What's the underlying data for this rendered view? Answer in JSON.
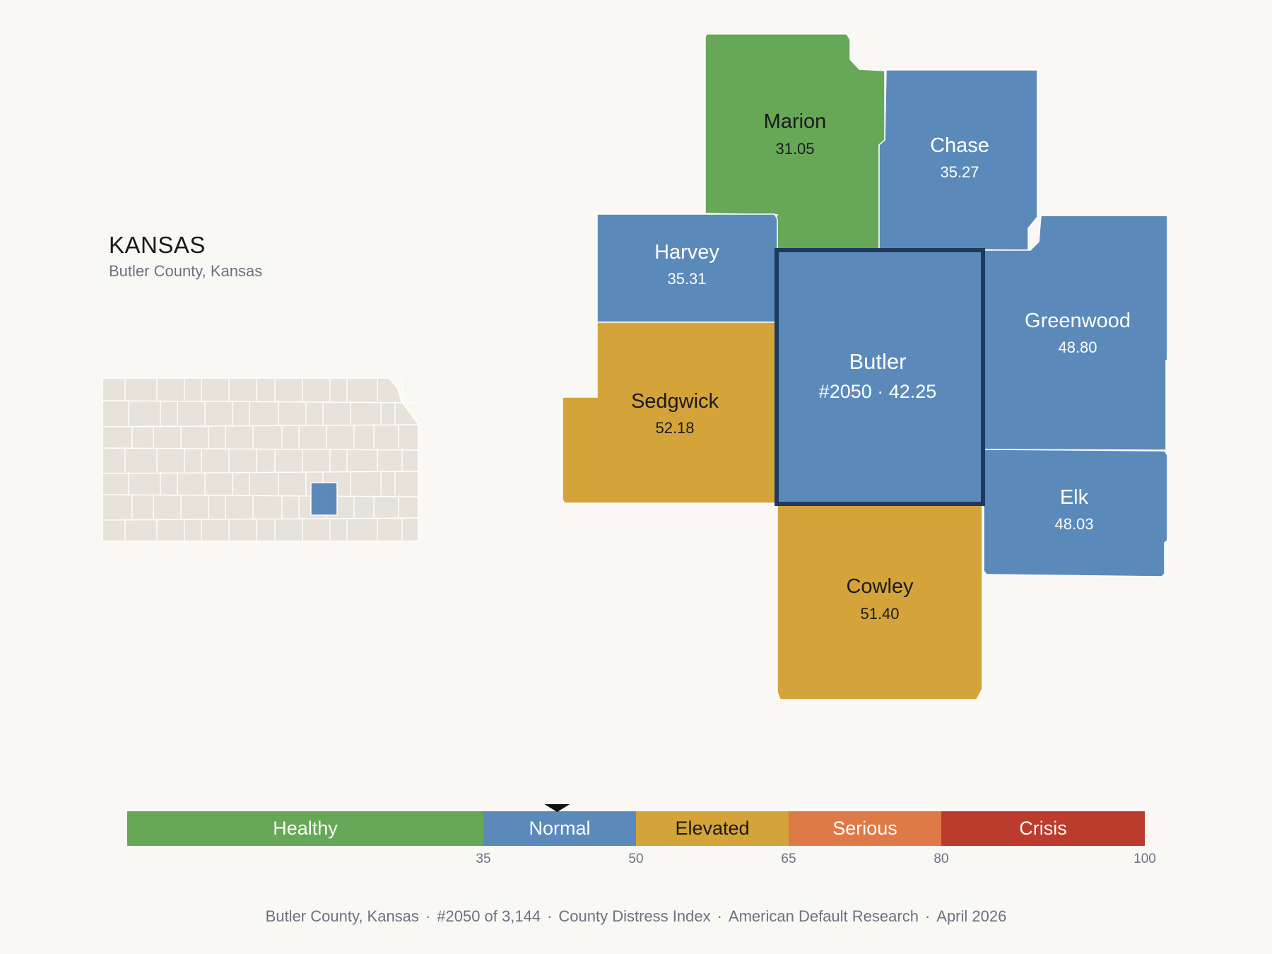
{
  "header": {
    "state": "KANSAS",
    "subtitle": "Butler County, Kansas"
  },
  "colors": {
    "background": "#f9f8f5",
    "healthy": "#67a758",
    "normal": "#5b8aba",
    "elevated": "#d4a43a",
    "serious": "#de7a48",
    "crisis": "#bb3b2c",
    "inset_fill": "#e8e3da",
    "highlight_border": "#1e3a5f"
  },
  "counties": [
    {
      "name": "Marion",
      "value": "31.05",
      "category": "healthy"
    },
    {
      "name": "Chase",
      "value": "35.27",
      "category": "normal"
    },
    {
      "name": "Harvey",
      "value": "35.31",
      "category": "normal"
    },
    {
      "name": "Butler",
      "value": "#2050 · 42.25",
      "category": "normal",
      "selected": true
    },
    {
      "name": "Greenwood",
      "value": "48.80",
      "category": "normal"
    },
    {
      "name": "Sedgwick",
      "value": "52.18",
      "category": "elevated"
    },
    {
      "name": "Elk",
      "value": "48.03",
      "category": "normal"
    },
    {
      "name": "Cowley",
      "value": "51.40",
      "category": "elevated"
    }
  ],
  "legend": {
    "bands": [
      {
        "label": "Healthy",
        "from": 0,
        "to": 35,
        "color": "#67a758"
      },
      {
        "label": "Normal",
        "from": 35,
        "to": 50,
        "color": "#5b8aba"
      },
      {
        "label": "Elevated",
        "from": 50,
        "to": 65,
        "color": "#d4a43a"
      },
      {
        "label": "Serious",
        "from": 65,
        "to": 80,
        "color": "#de7a48"
      },
      {
        "label": "Crisis",
        "from": 80,
        "to": 100,
        "color": "#bb3b2c"
      }
    ],
    "ticks": [
      "35",
      "50",
      "65",
      "80",
      "100"
    ],
    "marker_value": 42.25
  },
  "footer": {
    "county": "Butler County, Kansas",
    "rank": "#2050 of 3,144",
    "index": "County Distress Index",
    "org": "American Default Research",
    "date": "April 2026"
  }
}
